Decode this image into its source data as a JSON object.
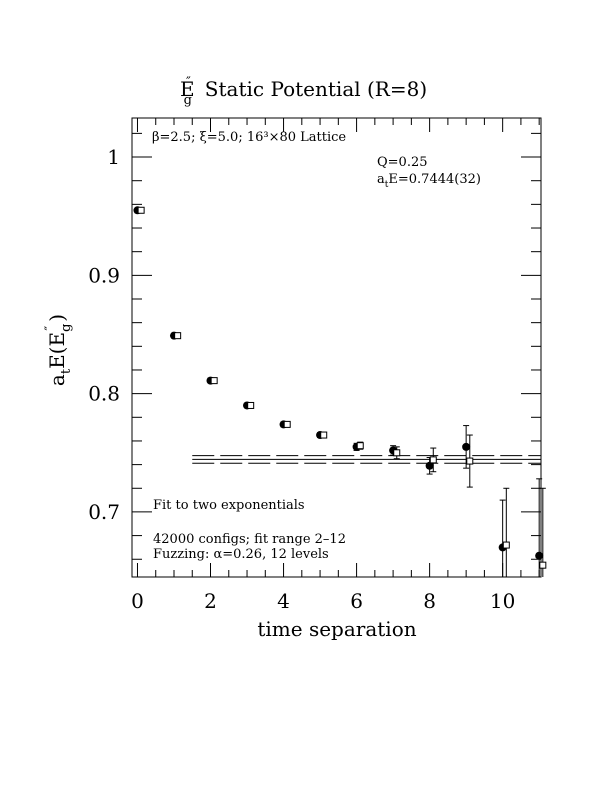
{
  "chart_data": {
    "type": "scatter",
    "title_main": "E",
    "title_sup": "″",
    "title_sub": "g",
    "title_rest": "Static Potential (R=8)",
    "xlabel": "time separation",
    "ylabel_prefix": "a",
    "ylabel_sub": "t",
    "ylabel_mid": "E(E",
    "ylabel_sup": "″",
    "ylabel_sub2": "g",
    "ylabel_end": ")",
    "xlim": [
      -0.15,
      11.05
    ],
    "ylim": [
      0.645,
      1.033
    ],
    "xticks": [
      0,
      2,
      4,
      6,
      8,
      10
    ],
    "xtick_labels": [
      "0",
      "2",
      "4",
      "6",
      "8",
      "10"
    ],
    "xminor_step": 0.5,
    "yticks": [
      0.7,
      0.8,
      0.9,
      1.0
    ],
    "ytick_labels": [
      "0.7",
      "0.8",
      "0.9",
      "1"
    ],
    "yminor_step": 0.02,
    "annotations": {
      "top_left": "β=2.5; ξ=5.0; 16³×80 Lattice",
      "q_value": "Q=0.25",
      "energy_prefix": "a",
      "energy_sub": "t",
      "energy_value": "E=0.7444(32)",
      "fit_label": "Fit to two exponentials",
      "configs": "42000 configs; fit range 2–12",
      "fuzzing": "Fuzzing: α=0.26, 12 levels"
    },
    "series": [
      {
        "marker": "filled-circle",
        "x": [
          0,
          1,
          2,
          3,
          4,
          5,
          6,
          7,
          8,
          9,
          10,
          11
        ],
        "y": [
          0.955,
          0.849,
          0.811,
          0.79,
          0.774,
          0.765,
          0.755,
          0.752,
          0.739,
          0.755,
          0.67,
          0.663
        ],
        "err": [
          0.002,
          0.002,
          0.002,
          0.002,
          0.002,
          0.002,
          0.003,
          0.004,
          0.007,
          0.018,
          0.04,
          0.065
        ]
      },
      {
        "marker": "open-square",
        "x": [
          0.1,
          1.1,
          2.1,
          3.1,
          4.1,
          5.1,
          6.1,
          7.1,
          8.1,
          9.1,
          10.1,
          11.1
        ],
        "y": [
          0.955,
          0.849,
          0.811,
          0.79,
          0.774,
          0.765,
          0.756,
          0.75,
          0.744,
          0.743,
          0.672,
          0.655
        ],
        "err": [
          0.002,
          0.002,
          0.002,
          0.002,
          0.002,
          0.002,
          0.003,
          0.005,
          0.01,
          0.022,
          0.048,
          0.065
        ]
      }
    ],
    "fit": {
      "x_range": [
        1.5,
        11.05
      ],
      "center": 0.7444,
      "upper": 0.7476,
      "lower": 0.7412
    }
  }
}
